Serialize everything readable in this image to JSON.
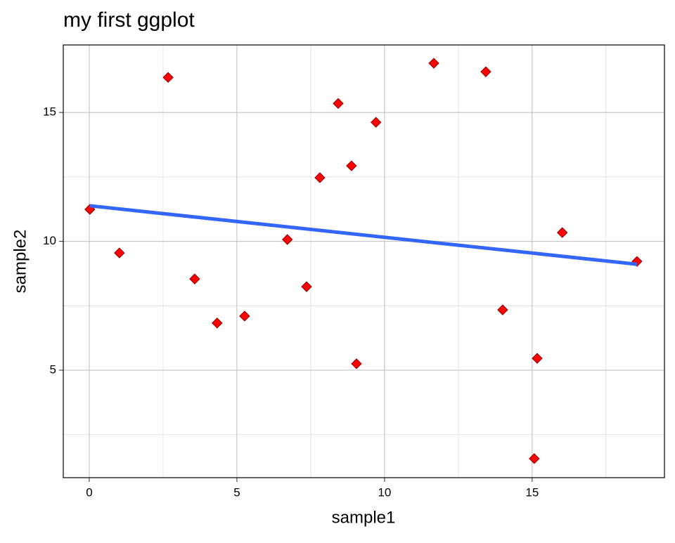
{
  "chart_data": {
    "type": "scatter",
    "title": "my first ggplot",
    "xlabel": "sample1",
    "ylabel": "sample2",
    "xlim": [
      -0.88,
      19.48
    ],
    "ylim": [
      0.83,
      17.62
    ],
    "xticks": [
      0,
      5,
      10,
      15
    ],
    "yticks": [
      5,
      10,
      15
    ],
    "x_minor_ticks": [
      2.5,
      7.5,
      12.5,
      17.5
    ],
    "y_minor_ticks": [
      2.5,
      7.5,
      12.5
    ],
    "grid": true,
    "series": [
      {
        "color": "#ff0000",
        "x": [
          0.02,
          1.02,
          2.67,
          3.57,
          4.33,
          5.26,
          6.71,
          7.36,
          7.81,
          8.43,
          8.88,
          9.05,
          9.71,
          11.67,
          13.43,
          14.0,
          15.17,
          15.07,
          16.02,
          18.55
        ],
        "values": [
          11.24,
          9.55,
          16.36,
          8.54,
          6.83,
          7.1,
          10.07,
          8.24,
          12.47,
          15.35,
          12.93,
          5.25,
          14.62,
          16.91,
          16.58,
          7.34,
          5.46,
          1.57,
          10.34,
          9.22
        ]
      }
    ],
    "trend_line": {
      "color": "#3366ff",
      "x": [
        0.02,
        18.55
      ],
      "values": [
        11.38,
        9.11
      ]
    }
  }
}
